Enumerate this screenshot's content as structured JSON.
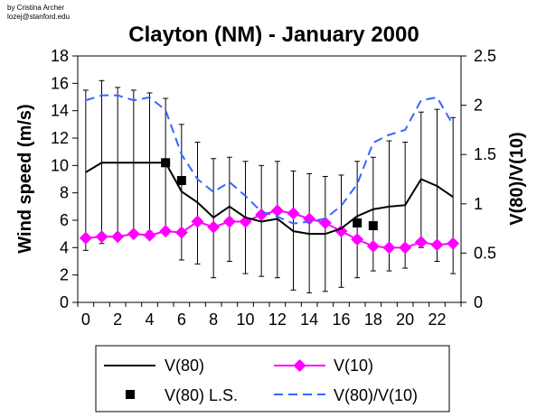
{
  "chart_data": {
    "type": "line",
    "title": "Clayton (NM) - January 2000",
    "credit_line1": "by Cristina Archer",
    "credit_line2": "lozej@stanford.edu",
    "xlabel": "",
    "ylabel": "Wind speed (m/s)",
    "y2label": "V(80)/V(10)",
    "ylim": [
      0,
      18
    ],
    "y2lim": [
      0,
      2.5
    ],
    "x": [
      0,
      1,
      2,
      3,
      4,
      5,
      6,
      7,
      8,
      9,
      10,
      11,
      12,
      13,
      14,
      15,
      16,
      17,
      18,
      19,
      20,
      21,
      22,
      23
    ],
    "x_ticks": [
      "0",
      "2",
      "4",
      "6",
      "8",
      "10",
      "12",
      "14",
      "16",
      "18",
      "20",
      "22"
    ],
    "y_ticks": [
      "0",
      "2",
      "4",
      "6",
      "8",
      "10",
      "12",
      "14",
      "16",
      "18"
    ],
    "y2_ticks": [
      "0",
      "0.5",
      "1",
      "1.5",
      "2",
      "2.5"
    ],
    "series": [
      {
        "name": "V(80)",
        "axis": "left",
        "color": "#000000",
        "style": "solid",
        "values": [
          9.5,
          10.2,
          10.2,
          10.2,
          10.2,
          10.2,
          8.1,
          7.3,
          6.2,
          7.0,
          6.2,
          5.9,
          6.1,
          5.2,
          5.0,
          5.0,
          5.4,
          6.3,
          6.8,
          7.0,
          7.1,
          9.0,
          8.5,
          7.7
        ],
        "error_upper": [
          15.5,
          16.2,
          15.7,
          15.5,
          15.3,
          14.9,
          13.0,
          11.7,
          10.5,
          10.6,
          10.3,
          10.0,
          10.3,
          9.6,
          9.4,
          9.2,
          9.3,
          10.3,
          10.6,
          11.8,
          11.7,
          13.9,
          14.1,
          13.5
        ],
        "error_lower": [
          3.8,
          4.3,
          4.7,
          4.9,
          5.2,
          5.4,
          3.1,
          2.8,
          1.8,
          3.0,
          2.1,
          1.9,
          1.8,
          0.9,
          0.7,
          0.8,
          1.1,
          1.8,
          2.3,
          2.3,
          2.5,
          4.0,
          3.0,
          2.1
        ]
      },
      {
        "name": "V(10)",
        "axis": "left",
        "color": "#ff00ff",
        "style": "diamond",
        "values": [
          4.7,
          4.8,
          4.8,
          5.0,
          4.9,
          5.2,
          5.1,
          5.9,
          5.5,
          5.9,
          5.9,
          6.4,
          6.7,
          6.5,
          6.1,
          5.8,
          5.2,
          4.6,
          4.1,
          4.0,
          4.0,
          4.4,
          4.2,
          4.3
        ]
      },
      {
        "name": "V(80) L.S.",
        "axis": "left",
        "color": "#000000",
        "style": "square",
        "x": [
          5,
          6,
          17,
          18
        ],
        "values": [
          10.2,
          8.9,
          5.8,
          5.6
        ]
      },
      {
        "name": "V(80)/V(10)",
        "axis": "right",
        "color": "#3366ff",
        "style": "dashed",
        "values": [
          2.05,
          2.1,
          2.1,
          2.05,
          2.08,
          1.95,
          1.5,
          1.25,
          1.12,
          1.22,
          1.08,
          0.92,
          0.87,
          0.8,
          0.82,
          0.85,
          0.98,
          1.2,
          1.62,
          1.7,
          1.75,
          2.05,
          2.08,
          1.8
        ]
      }
    ]
  }
}
